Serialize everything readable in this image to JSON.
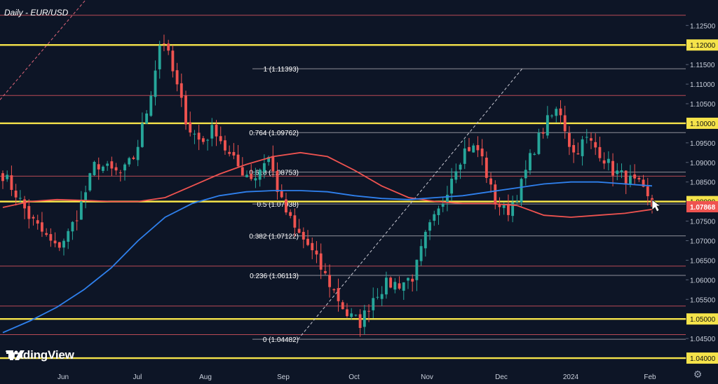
{
  "chart_data": {
    "type": "candlestick",
    "title": "Daily - EUR/USD",
    "ylim": [
      1.0375,
      1.1315
    ],
    "x_ticks": [
      "Jun",
      "Jul",
      "Aug",
      "Sep",
      "Oct",
      "Nov",
      "Dec",
      "2024",
      "Feb"
    ],
    "y_ticks": [
      "1.12500",
      "1.12000",
      "1.11500",
      "1.11000",
      "1.10500",
      "1.10000",
      "1.09500",
      "1.09000",
      "1.08500",
      "1.08000",
      "1.07500",
      "1.07000",
      "1.06500",
      "1.06000",
      "1.05500",
      "1.05000",
      "1.04500",
      "1.04000"
    ],
    "last_price_label": "1.07868",
    "last_price": 1.07868,
    "horizontal_levels_yellow": [
      1.12,
      1.1,
      1.08,
      1.05,
      1.04
    ],
    "horizontal_levels_thin": [
      1.1276,
      1.1071,
      1.0865,
      1.0635,
      1.0533,
      1.046
    ],
    "fibonacci": {
      "levels": [
        {
          "label": "1 (1.11393)",
          "value": 1.11393
        },
        {
          "label": "0.764 (1.09762)",
          "value": 1.09762
        },
        {
          "label": "0.618 (1.08753)",
          "value": 1.08753
        },
        {
          "label": "0.5 (1.07938)",
          "value": 1.07938
        },
        {
          "label": "0.382 (1.07122)",
          "value": 1.07122
        },
        {
          "label": "0.236 (1.06113)",
          "value": 1.06113
        },
        {
          "label": "0 (1.04482)",
          "value": 1.04482
        }
      ]
    },
    "moving_averages": [
      {
        "color": "#ef5350",
        "values": [
          1.0785,
          1.08,
          1.0805,
          1.0803,
          1.08,
          1.08,
          1.081,
          1.084,
          1.087,
          1.0895,
          1.0915,
          1.0925,
          1.0915,
          1.088,
          1.084,
          1.081,
          1.08,
          1.0795,
          1.0795,
          1.079,
          1.0765,
          1.076,
          1.0765,
          1.077,
          1.078
        ]
      },
      {
        "color": "#2f80ed",
        "values": [
          1.0465,
          1.0495,
          1.053,
          1.0575,
          1.063,
          1.07,
          1.076,
          1.0795,
          1.0815,
          1.0825,
          1.0828,
          1.0828,
          1.0825,
          1.0815,
          1.0808,
          1.0805,
          1.081,
          1.0815,
          1.0825,
          1.0835,
          1.0845,
          1.085,
          1.085,
          1.0845,
          1.084
        ]
      }
    ],
    "closes": [
      1.087,
      1.082,
      1.076,
      1.072,
      1.068,
      1.072,
      1.08,
      1.09,
      1.088,
      1.087,
      1.092,
      1.105,
      1.123,
      1.111,
      1.099,
      1.095,
      1.099,
      1.092,
      1.088,
      1.086,
      1.092,
      1.08,
      1.073,
      1.069,
      1.063,
      1.057,
      1.051,
      1.049,
      1.056,
      1.059,
      1.059,
      1.061,
      1.072,
      1.078,
      1.088,
      1.094,
      1.093,
      1.081,
      1.077,
      1.083,
      1.093,
      1.1,
      1.104,
      1.092,
      1.096,
      1.093,
      1.088,
      1.086,
      1.084,
      1.0787
    ],
    "candle_colors": {
      "up": "#26a69a",
      "down": "#ef5350"
    }
  },
  "icons": {
    "logo": "tradingview-logo-icon",
    "settings": "gear-icon"
  },
  "branding": {
    "logo_text": "TradingView"
  }
}
